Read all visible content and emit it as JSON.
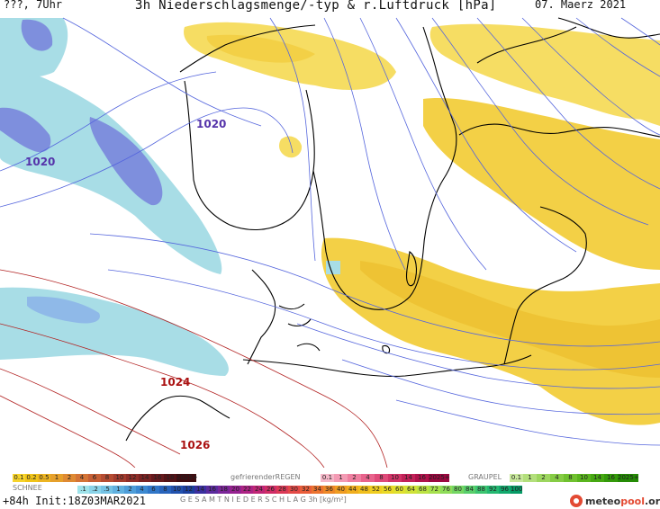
{
  "header": {
    "left": "???, 7Uhr",
    "title": "3h Niederschlagsmenge/-typ & r.Luftdruck [hPa]",
    "date": "07. Maerz 2021"
  },
  "isobar_labels": [
    "1020",
    "1020",
    "1024",
    "1026"
  ],
  "legend": {
    "snow": {
      "title": "SCHNEE",
      "values": [
        "0.1",
        "0.2",
        "0.5",
        "1",
        "2",
        "4",
        "6",
        "8",
        "10",
        "12",
        "14",
        "16",
        "18",
        "2025+"
      ]
    },
    "freezing_rain": {
      "title": "gefrierenderREGEN",
      "values": [
        "0.1",
        "1",
        "2",
        "4",
        "8",
        "10",
        "14",
        "16",
        "2025+"
      ]
    },
    "graupel": {
      "title": "GRAUPEL",
      "values": [
        "0.1",
        "1",
        "2",
        "4",
        "8",
        "10",
        "14",
        "16",
        "2025+"
      ]
    },
    "total": {
      "title": "G E S A M T N I E D E R S C H L A G   3h  [kg/m²]",
      "values": [
        ".1",
        ".2",
        ".5",
        "1",
        "2",
        "4",
        "6",
        "8",
        "10",
        "12",
        "14",
        "16",
        "18",
        "20",
        "22",
        "24",
        "26",
        "28",
        "30",
        "32",
        "34",
        "36",
        "40",
        "44",
        "48",
        "52",
        "56",
        "60",
        "64",
        "68",
        "72",
        "76",
        "80",
        "84",
        "88",
        "92",
        "96",
        "100"
      ]
    }
  },
  "footer": {
    "run": "+84h  Init:18Z03MAR2021",
    "logo_prefix": "meteo",
    "logo_accent": "pool",
    "logo_suffix": ".org"
  },
  "colors": {
    "rain": "#f0c419",
    "rain_light": "#f6dd63",
    "snow": "#a8dde6",
    "snow_dark": "#7e8fdd",
    "isobar_blue": "#5566dd",
    "isobar_red": "#b22222"
  }
}
